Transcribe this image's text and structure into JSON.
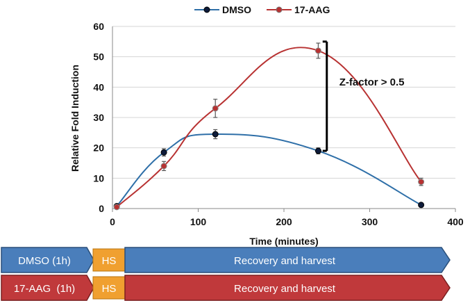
{
  "chart_data": {
    "type": "line",
    "title": "",
    "xlabel": "Time (minutes)",
    "ylabel": "Relative Fold Induction",
    "xlim": [
      0,
      400
    ],
    "ylim": [
      0,
      60
    ],
    "x_ticks": [
      0,
      100,
      200,
      300,
      400
    ],
    "y_ticks": [
      0,
      10,
      20,
      30,
      40,
      50,
      60
    ],
    "grid": "horizontal",
    "legend_position": "top-center",
    "series": [
      {
        "name": "DMSO",
        "color": "#2e6fa8",
        "x": [
          5,
          60,
          120,
          240,
          360
        ],
        "y": [
          0.8,
          18.5,
          24.5,
          19,
          1.2
        ],
        "err": [
          0.3,
          1.2,
          1.5,
          1.0,
          0.3
        ]
      },
      {
        "name": "17-AAG",
        "color": "#b83232",
        "x": [
          5,
          60,
          120,
          240,
          360
        ],
        "y": [
          0.5,
          14,
          33,
          52,
          8.8
        ],
        "err": [
          0.3,
          1.5,
          3.0,
          2.5,
          1.2
        ]
      }
    ],
    "annotations": [
      {
        "text": "Z-factor > 0.5",
        "x_from": 250,
        "y_from": 19,
        "y_to": 55
      }
    ]
  },
  "timelines": [
    {
      "treatment": "DMSO (1h)",
      "step": "HS",
      "phase": "Recovery and harvest",
      "color": "#4a7ebb"
    },
    {
      "treatment": "17-AAG  (1h)",
      "step": "HS",
      "phase": "Recovery and harvest",
      "color": "#c0393b"
    }
  ],
  "hs_color": "#f0a030"
}
